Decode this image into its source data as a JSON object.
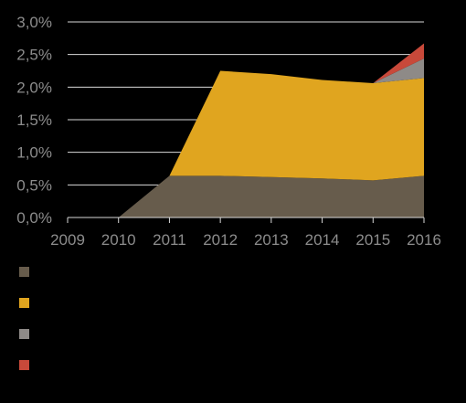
{
  "chart_data": {
    "type": "area",
    "stacked": true,
    "x": [
      "2009",
      "2010",
      "2011",
      "2012",
      "2013",
      "2014",
      "2015",
      "2016"
    ],
    "ylim": [
      0,
      3.0
    ],
    "yticks": [
      "0,0%",
      "0,5%",
      "1,0%",
      "1,5%",
      "2,0%",
      "2,5%",
      "3,0%"
    ],
    "ytick_values": [
      0,
      0.5,
      1.0,
      1.5,
      2.0,
      2.5,
      3.0
    ],
    "grid": true,
    "legend_position": "bottom-left",
    "series": [
      {
        "color": "#675c4c",
        "values": [
          0,
          0,
          0.64,
          0.64,
          0.62,
          0.6,
          0.57,
          0.64
        ]
      },
      {
        "color": "#e0a51f",
        "values": [
          0,
          0,
          0,
          1.61,
          1.58,
          1.51,
          1.49,
          1.5
        ]
      },
      {
        "color": "#8e8a87",
        "values": [
          0,
          0,
          0,
          0,
          0,
          0,
          0,
          0.3
        ]
      },
      {
        "color": "#c8493a",
        "values": [
          0,
          0,
          0,
          0,
          0,
          0,
          0,
          0.23
        ]
      }
    ]
  }
}
